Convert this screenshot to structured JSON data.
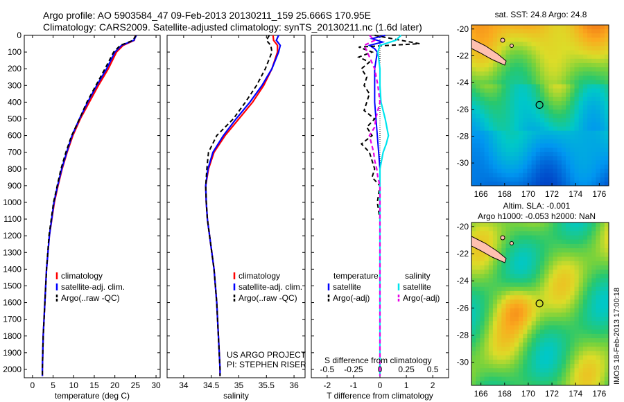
{
  "header": {
    "title_line1": "Argo profile: AO 5903584_47 09-Feb-2013 20130211_159 25.666S 170.95E",
    "title_line2": "Climatology: CARS2009. Satellite-adjusted climatology: synTS_20130211.nc (1.6d later)"
  },
  "footer": {
    "project": "US ARGO PROJECT",
    "pi": "PI: STEPHEN RISER",
    "imos_stamp": "IMOS 18-Feb-2013 17:00:18"
  },
  "colors": {
    "climatology": "#ff0000",
    "satellite": "#0000ff",
    "argo": "#000000",
    "salinity_satellite": "#00e5ee",
    "salinity_argo": "#e600e6"
  },
  "chart_data": [
    {
      "type": "line",
      "id": "temperature",
      "xlabel": "temperature (deg C)",
      "xlim": [
        -2,
        31
      ],
      "ylim": [
        0,
        2050
      ],
      "xticks": [
        0,
        5,
        10,
        15,
        20,
        25,
        30
      ],
      "yticks": [
        0,
        100,
        200,
        300,
        400,
        500,
        600,
        700,
        800,
        900,
        1000,
        1100,
        1200,
        1300,
        1400,
        1500,
        1600,
        1700,
        1800,
        1900,
        2000
      ],
      "legend": [
        "climatology",
        "satellite-adj. clim.",
        "Argo(..raw -QC)"
      ],
      "series": [
        {
          "name": "climatology",
          "depth": [
            0,
            30,
            60,
            100,
            200,
            300,
            400,
            500,
            600,
            700,
            800,
            900,
            1000,
            1200,
            1400,
            1600,
            1800,
            2000,
            2040
          ],
          "values": [
            25.0,
            24.7,
            22.0,
            20.4,
            18.4,
            16.0,
            13.8,
            11.6,
            9.8,
            8.4,
            7.2,
            6.2,
            5.3,
            4.1,
            3.4,
            3.0,
            2.6,
            2.4,
            2.4
          ]
        },
        {
          "name": "satellite-adj. clim.",
          "depth": [
            0,
            30,
            60,
            100,
            200,
            300,
            400,
            500,
            600,
            700,
            800,
            900,
            1000,
            1200,
            1400,
            1600,
            1800,
            2000,
            2040
          ],
          "values": [
            25.2,
            24.6,
            21.6,
            20.0,
            18.0,
            15.6,
            13.4,
            11.4,
            9.6,
            8.3,
            7.1,
            6.1,
            5.2,
            4.1,
            3.4,
            3.0,
            2.6,
            2.4,
            2.4
          ]
        },
        {
          "name": "Argo(..raw -QC)",
          "depth": [
            0,
            30,
            60,
            100,
            200,
            300,
            400,
            500,
            600,
            700,
            800,
            900,
            1000,
            1200,
            1400,
            1600,
            1800,
            2000,
            2040
          ],
          "values": [
            25.1,
            24.4,
            21.3,
            19.7,
            17.6,
            15.4,
            13.2,
            11.4,
            9.5,
            8.1,
            6.9,
            6.0,
            5.1,
            4.0,
            3.4,
            3.0,
            2.6,
            2.4,
            2.4
          ]
        }
      ]
    },
    {
      "type": "line",
      "id": "salinity",
      "xlabel": "salinity",
      "xlim": [
        33.7,
        36.2
      ],
      "ylim": [
        0,
        2050
      ],
      "xticks": [
        34,
        34.5,
        35,
        35.5,
        36
      ],
      "legend": [
        "climatology",
        "satellite-adj. clim.",
        "Argo(..raw -QC)"
      ],
      "series": [
        {
          "name": "climatology",
          "depth": [
            0,
            30,
            60,
            100,
            200,
            300,
            400,
            500,
            600,
            700,
            800,
            900,
            1000,
            1100,
            1200,
            1400,
            1600,
            1800,
            2000,
            2040
          ],
          "values": [
            35.62,
            35.63,
            35.7,
            35.7,
            35.6,
            35.45,
            35.25,
            35.0,
            34.75,
            34.55,
            34.45,
            34.4,
            34.41,
            34.43,
            34.47,
            34.55,
            34.6,
            34.63,
            34.66,
            34.66
          ]
        },
        {
          "name": "satellite-adj. clim.",
          "depth": [
            0,
            30,
            60,
            100,
            200,
            300,
            400,
            500,
            600,
            700,
            800,
            900,
            1000,
            1100,
            1200,
            1400,
            1600,
            1800,
            2000,
            2040
          ],
          "values": [
            35.72,
            35.68,
            35.75,
            35.72,
            35.6,
            35.42,
            35.2,
            34.95,
            34.72,
            34.53,
            34.44,
            34.4,
            34.41,
            34.43,
            34.47,
            34.55,
            34.6,
            34.63,
            34.66,
            34.66
          ]
        },
        {
          "name": "Argo(..raw -QC)",
          "depth": [
            0,
            30,
            60,
            100,
            200,
            300,
            400,
            500,
            600,
            700,
            800,
            900,
            1000,
            1100,
            1200,
            1400,
            1600,
            1800,
            2000,
            2040
          ],
          "values": [
            35.55,
            35.5,
            35.58,
            35.6,
            35.48,
            35.32,
            35.12,
            34.9,
            34.6,
            34.45,
            34.42,
            34.4,
            34.41,
            34.43,
            34.47,
            34.55,
            34.6,
            34.63,
            34.66,
            34.66
          ]
        }
      ]
    },
    {
      "type": "line",
      "id": "difference",
      "xlabel": "T difference from climatology",
      "xlabel_top": "S difference from climatology",
      "xlim": [
        -2.6,
        2.6
      ],
      "ylim": [
        0,
        2050
      ],
      "xticks": [
        -2,
        -1,
        0,
        1,
        2
      ],
      "xticks_top": [
        "-0.5",
        "-0.25",
        "0",
        "0.25",
        "0.5"
      ],
      "legend_headers": [
        "temperature",
        "salinity"
      ],
      "legend": [
        "satellite",
        "Argo(-adj)",
        "satellite",
        "Argo(-adj)"
      ],
      "series": [
        {
          "name": "satellite",
          "depth": [
            0,
            20,
            40,
            60,
            80,
            100,
            150,
            200,
            300,
            400,
            500,
            600,
            700,
            800,
            1000,
            1200,
            1500,
            2040
          ],
          "values": [
            0.2,
            -0.3,
            0.1,
            -0.4,
            -0.2,
            -0.1,
            -0.15,
            -0.2,
            -0.2,
            -0.2,
            -0.15,
            -0.1,
            -0.05,
            0,
            0,
            0,
            0,
            0
          ]
        },
        {
          "name": "Argo(-adj)",
          "depth": [
            0,
            30,
            50,
            70,
            100,
            130,
            160,
            200,
            250,
            300,
            350,
            400,
            450,
            500,
            550,
            600,
            650,
            700,
            750,
            800,
            850,
            900,
            1000,
            1100,
            1200,
            1500,
            2040
          ],
          "values": [
            -0.2,
            0.8,
            1.5,
            -0.8,
            -0.3,
            -0.8,
            -0.4,
            -0.7,
            -0.5,
            -0.6,
            -0.4,
            -0.5,
            -0.6,
            -0.2,
            -0.5,
            -0.3,
            -0.7,
            -0.4,
            -0.3,
            -0.2,
            -0.3,
            0,
            -0.1,
            0,
            0,
            0,
            0
          ]
        },
        {
          "name": "salinity satellite",
          "depth": [
            0,
            30,
            60,
            100,
            200,
            300,
            400,
            500,
            600,
            650,
            700,
            800,
            1000,
            1500,
            2040
          ],
          "values": [
            0.2,
            0.15,
            0.0,
            -0.02,
            0.0,
            0.0,
            0.01,
            0.05,
            0.08,
            0.06,
            0.03,
            0.0,
            0.0,
            0.0,
            0.0
          ]
        },
        {
          "name": "salinity Argo(-adj)",
          "depth": [
            0,
            30,
            60,
            100,
            200,
            300,
            400,
            500,
            550,
            600,
            650,
            700,
            750,
            800,
            850,
            900,
            1000,
            2040
          ],
          "values": [
            -0.1,
            -0.05,
            -0.15,
            -0.12,
            -0.05,
            -0.02,
            0.0,
            -0.04,
            -0.05,
            -0.1,
            -0.08,
            -0.06,
            -0.05,
            -0.03,
            -0.02,
            0.0,
            0.0,
            0.0
          ]
        }
      ]
    },
    {
      "type": "heatmap",
      "id": "sst_map",
      "title": "sat. SST: 24.8 Argo: 24.8",
      "xlim": [
        165.2,
        176.8
      ],
      "ylim": [
        -31.7,
        -19.7
      ],
      "xticks": [
        166,
        168,
        170,
        172,
        174,
        176
      ],
      "yticks": [
        -20,
        -22,
        -24,
        -26,
        -28,
        -30
      ],
      "argo_position": {
        "lon": 170.95,
        "lat": -25.666
      }
    },
    {
      "type": "heatmap",
      "id": "sla_map",
      "title_line1": "Altim. SLA: -0.001",
      "title_line2": "Argo h1000: -0.053 h2000: NaN",
      "xlim": [
        165.2,
        176.8
      ],
      "ylim": [
        -31.7,
        -19.7
      ],
      "xticks": [
        166,
        168,
        170,
        172,
        174,
        176
      ],
      "yticks": [
        -20,
        -22,
        -24,
        -26,
        -28,
        -30
      ],
      "argo_position": {
        "lon": 170.95,
        "lat": -25.666
      }
    }
  ]
}
